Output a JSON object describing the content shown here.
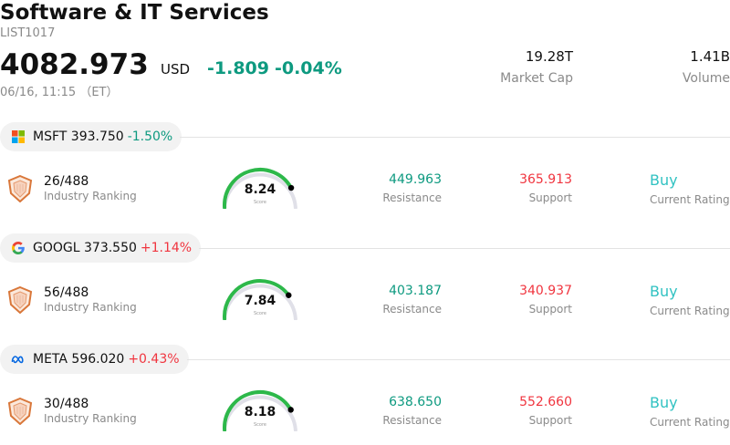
{
  "header": {
    "title": "Software & IT Services",
    "code": "LIST1017",
    "price": "4082.973",
    "currency": "USD",
    "change": "-1.809",
    "change_pct": "-0.04%",
    "time": "06/16, 11:15 （ET）",
    "market_cap_value": "19.28T",
    "market_cap_label": "Market Cap",
    "volume_value": "1.41B",
    "volume_label": "Volume"
  },
  "stocks": [
    {
      "ticker": "MSFT",
      "price": "393.750",
      "change_pct": "-1.50%",
      "direction": "down",
      "logo": "microsoft-logo",
      "rank": "26/488",
      "rank_label": "Industry Ranking",
      "score": "8.24",
      "score_value": 8.24,
      "score_label": "Score",
      "resistance": "449.963",
      "resistance_label": "Resistance",
      "support": "365.913",
      "support_label": "Support",
      "rating": "Buy",
      "rating_label": "Current Rating"
    },
    {
      "ticker": "GOOGL",
      "price": "373.550",
      "change_pct": "+1.14%",
      "direction": "up",
      "logo": "google-logo",
      "rank": "56/488",
      "rank_label": "Industry Ranking",
      "score": "7.84",
      "score_value": 7.84,
      "score_label": "Score",
      "resistance": "403.187",
      "resistance_label": "Resistance",
      "support": "340.937",
      "support_label": "Support",
      "rating": "Buy",
      "rating_label": "Current Rating"
    },
    {
      "ticker": "META",
      "price": "596.020",
      "change_pct": "+0.43%",
      "direction": "up",
      "logo": "meta-logo",
      "rank": "30/488",
      "rank_label": "Industry Ranking",
      "score": "8.18",
      "score_value": 8.18,
      "score_label": "Score",
      "resistance": "638.650",
      "resistance_label": "Resistance",
      "support": "552.660",
      "support_label": "Support",
      "rating": "Buy",
      "rating_label": "Current Rating"
    }
  ],
  "colors": {
    "up": "#f0353f",
    "down": "#0e9a80",
    "rating": "#31c2c2",
    "gauge_fill": "#2db84a",
    "gauge_track": "#e0e0e8"
  }
}
